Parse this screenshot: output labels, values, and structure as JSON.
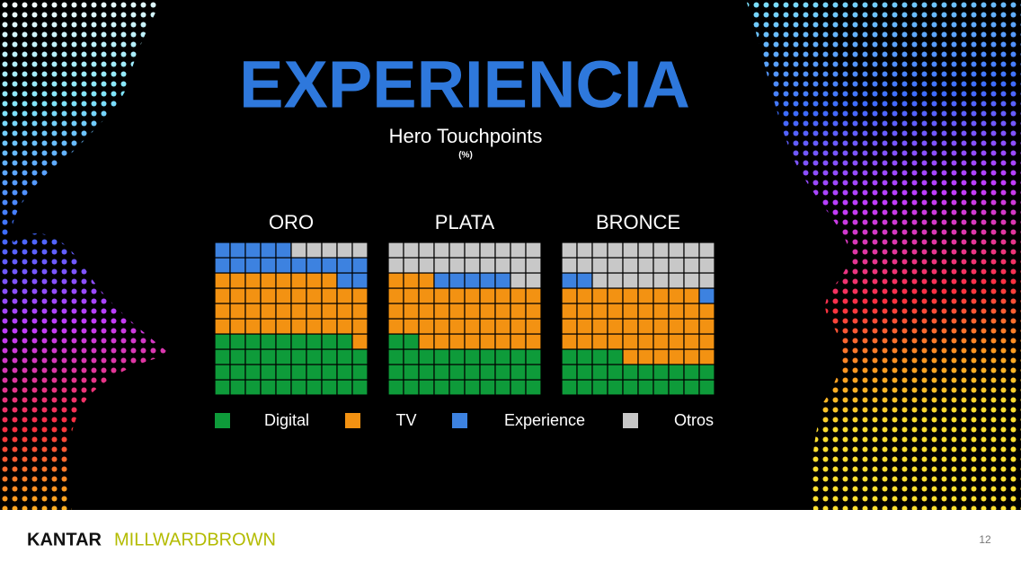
{
  "header": {
    "title": "EXPERIENCIA",
    "subtitle": "Hero Touchpoints",
    "unit": "(%)"
  },
  "chart_data": [
    {
      "type": "waffle",
      "title": "ORO",
      "values": [
        39,
        39,
        17,
        5
      ]
    },
    {
      "type": "waffle",
      "title": "PLATA",
      "values": [
        32,
        41,
        5,
        22
      ]
    },
    {
      "type": "waffle",
      "title": "BRONCE",
      "values": [
        24,
        45,
        3,
        28
      ]
    }
  ],
  "legend": {
    "names": [
      "Digital",
      "TV",
      "Experience",
      "Otros"
    ],
    "colors": [
      "#0e9b3a",
      "#f39212",
      "#3d82e0",
      "#c8c8c8"
    ]
  },
  "footer": {
    "brand_left": "KANTAR",
    "brand_right": "MILLWARDBROWN",
    "page": "12"
  }
}
